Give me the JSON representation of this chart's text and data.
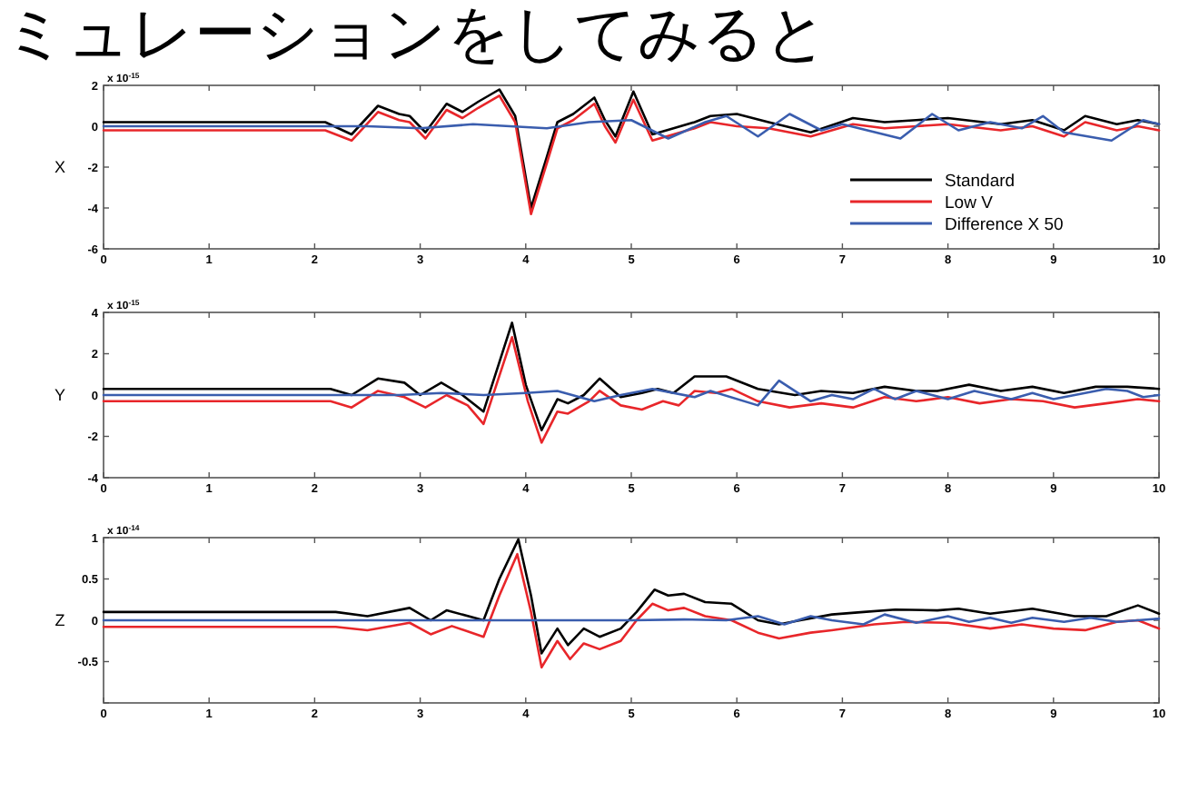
{
  "chart_data": [
    {
      "type": "line",
      "title": "ミュレーションをしてみると",
      "ylabel": "X",
      "annotations": [
        "x 10$^{-15}$"
      ],
      "xlim": [
        0,
        10
      ],
      "ylim": [
        -6,
        2
      ],
      "xticks": [
        0,
        1,
        2,
        3,
        4,
        5,
        6,
        7,
        8,
        9,
        10
      ],
      "yticks": [
        -6,
        -4,
        -2,
        0,
        2
      ],
      "legend": "bottom right",
      "line_style": "solid",
      "series": [
        {
          "name": "Standard",
          "color": "#000000",
          "x": [
            0,
            2.1,
            2.35,
            2.6,
            2.8,
            2.9,
            3.05,
            3.25,
            3.4,
            3.55,
            3.75,
            3.9,
            4.05,
            4.2,
            4.3,
            4.45,
            4.65,
            4.75,
            4.85,
            5.02,
            5.2,
            5.4,
            5.6,
            5.75,
            6.0,
            6.3,
            6.7,
            7.1,
            7.4,
            7.7,
            8.0,
            8.5,
            8.8,
            9.1,
            9.3,
            9.6,
            9.8,
            10
          ],
          "values": [
            0.2,
            0.2,
            -0.4,
            1.0,
            0.6,
            0.5,
            -0.3,
            1.1,
            0.7,
            1.2,
            1.8,
            0.5,
            -4.0,
            -1.5,
            0.2,
            0.6,
            1.4,
            0.3,
            -0.5,
            1.7,
            -0.4,
            -0.1,
            0.2,
            0.5,
            0.6,
            0.2,
            -0.3,
            0.4,
            0.2,
            0.3,
            0.4,
            0.1,
            0.3,
            -0.2,
            0.5,
            0.1,
            0.3,
            0.1
          ]
        },
        {
          "name": "Low V",
          "color": "#e8262a",
          "x": [
            0,
            2.1,
            2.35,
            2.6,
            2.8,
            2.9,
            3.05,
            3.25,
            3.4,
            3.55,
            3.75,
            3.9,
            4.05,
            4.2,
            4.3,
            4.45,
            4.65,
            4.75,
            4.85,
            5.02,
            5.2,
            5.4,
            5.6,
            5.75,
            6.0,
            6.3,
            6.7,
            7.1,
            7.4,
            7.7,
            8.0,
            8.5,
            8.8,
            9.1,
            9.3,
            9.6,
            9.8,
            10
          ],
          "values": [
            -0.2,
            -0.2,
            -0.7,
            0.7,
            0.3,
            0.2,
            -0.6,
            0.8,
            0.4,
            0.9,
            1.5,
            0.2,
            -4.3,
            -1.8,
            -0.1,
            0.3,
            1.1,
            0.0,
            -0.8,
            1.3,
            -0.7,
            -0.4,
            -0.1,
            0.2,
            0.0,
            -0.1,
            -0.5,
            0.1,
            -0.1,
            0.0,
            0.1,
            -0.2,
            0.0,
            -0.5,
            0.2,
            -0.2,
            0.0,
            -0.2
          ]
        },
        {
          "name": "Difference X 50",
          "color": "#3a5dae",
          "x": [
            0,
            2.5,
            3.0,
            3.5,
            4.2,
            4.6,
            5.0,
            5.35,
            5.7,
            5.9,
            6.2,
            6.5,
            6.8,
            7.0,
            7.55,
            7.85,
            8.1,
            8.4,
            8.7,
            8.9,
            9.1,
            9.55,
            9.85,
            10
          ],
          "values": [
            0,
            0,
            -0.1,
            0.1,
            -0.1,
            0.2,
            0.3,
            -0.6,
            0.2,
            0.5,
            -0.5,
            0.6,
            -0.2,
            0.1,
            -0.6,
            0.6,
            -0.2,
            0.2,
            -0.1,
            0.5,
            -0.3,
            -0.7,
            0.3,
            0.1
          ]
        }
      ]
    },
    {
      "type": "line",
      "ylabel": "Y",
      "annotations": [
        "x 10$^{-15}$"
      ],
      "xlim": [
        0,
        10
      ],
      "ylim": [
        -4,
        4
      ],
      "xticks": [
        0,
        1,
        2,
        3,
        4,
        5,
        6,
        7,
        8,
        9,
        10
      ],
      "yticks": [
        -4,
        -2,
        0,
        2,
        4
      ],
      "line_style": "solid",
      "series": [
        {
          "color": "#000000",
          "x": [
            0,
            2.15,
            2.35,
            2.6,
            2.85,
            3.0,
            3.2,
            3.4,
            3.6,
            3.87,
            4.0,
            4.15,
            4.3,
            4.4,
            4.55,
            4.7,
            4.9,
            5.1,
            5.25,
            5.4,
            5.6,
            5.9,
            6.2,
            6.55,
            6.8,
            7.1,
            7.4,
            7.7,
            7.9,
            8.2,
            8.5,
            8.8,
            9.1,
            9.4,
            9.7,
            10
          ],
          "values": [
            0.3,
            0.3,
            0.0,
            0.8,
            0.6,
            0.0,
            0.6,
            0.0,
            -0.8,
            3.5,
            0.5,
            -1.7,
            -0.2,
            -0.4,
            0.0,
            0.8,
            -0.1,
            0.1,
            0.3,
            0.1,
            0.9,
            0.9,
            0.3,
            0.0,
            0.2,
            0.1,
            0.4,
            0.2,
            0.2,
            0.5,
            0.2,
            0.4,
            0.1,
            0.4,
            0.4,
            0.3
          ]
        },
        {
          "color": "#e8262a",
          "x": [
            0,
            2.15,
            2.35,
            2.6,
            2.85,
            3.05,
            3.25,
            3.45,
            3.6,
            3.87,
            4.02,
            4.15,
            4.3,
            4.4,
            4.6,
            4.7,
            4.9,
            5.1,
            5.3,
            5.45,
            5.6,
            5.8,
            5.95,
            6.2,
            6.5,
            6.8,
            7.1,
            7.4,
            7.7,
            8.0,
            8.3,
            8.6,
            8.9,
            9.2,
            9.5,
            9.8,
            10
          ],
          "values": [
            -0.3,
            -0.3,
            -0.6,
            0.2,
            -0.1,
            -0.6,
            0.0,
            -0.5,
            -1.4,
            2.8,
            -0.3,
            -2.3,
            -0.8,
            -0.9,
            -0.3,
            0.2,
            -0.5,
            -0.7,
            -0.3,
            -0.5,
            0.2,
            0.1,
            0.3,
            -0.3,
            -0.6,
            -0.4,
            -0.6,
            -0.1,
            -0.3,
            -0.1,
            -0.4,
            -0.2,
            -0.3,
            -0.6,
            -0.4,
            -0.2,
            -0.3
          ]
        },
        {
          "color": "#3a5dae",
          "x": [
            0,
            2.8,
            3.2,
            3.6,
            4.0,
            4.3,
            4.65,
            4.9,
            5.2,
            5.6,
            5.75,
            6.2,
            6.4,
            6.7,
            6.9,
            7.1,
            7.3,
            7.5,
            7.7,
            8.0,
            8.25,
            8.6,
            8.8,
            9.0,
            9.2,
            9.5,
            9.7,
            9.85,
            10
          ],
          "values": [
            0,
            0,
            0.1,
            0.0,
            0.1,
            0.2,
            -0.3,
            0.0,
            0.3,
            -0.1,
            0.2,
            -0.5,
            0.7,
            -0.3,
            0.0,
            -0.2,
            0.3,
            -0.2,
            0.2,
            -0.2,
            0.2,
            -0.2,
            0.1,
            -0.2,
            0.0,
            0.3,
            0.2,
            -0.1,
            0.0
          ]
        }
      ]
    },
    {
      "type": "line",
      "ylabel": "Z",
      "annotations": [
        "x 10$^{-14}$"
      ],
      "xlim": [
        0,
        10
      ],
      "ylim": [
        -1,
        1
      ],
      "xticks": [
        0,
        1,
        2,
        3,
        4,
        5,
        6,
        7,
        8,
        9,
        10
      ],
      "yticks": [
        {
          "value": -1,
          "label": null
        },
        -0.5,
        0,
        0.5,
        1
      ],
      "line_style": "solid",
      "series": [
        {
          "color": "#000000",
          "x": [
            0,
            2.2,
            2.5,
            2.9,
            3.1,
            3.25,
            3.6,
            3.75,
            3.93,
            4.05,
            4.15,
            4.3,
            4.4,
            4.55,
            4.7,
            4.9,
            5.05,
            5.22,
            5.35,
            5.5,
            5.7,
            5.95,
            6.2,
            6.4,
            6.6,
            6.9,
            7.2,
            7.5,
            7.9,
            8.1,
            8.4,
            8.8,
            9.2,
            9.5,
            9.8,
            10
          ],
          "values": [
            0.1,
            0.1,
            0.05,
            0.15,
            0.0,
            0.12,
            0.0,
            0.5,
            0.98,
            0.3,
            -0.4,
            -0.1,
            -0.3,
            -0.1,
            -0.2,
            -0.1,
            0.1,
            0.37,
            0.3,
            0.32,
            0.22,
            0.2,
            0.0,
            -0.05,
            0.0,
            0.07,
            0.1,
            0.13,
            0.12,
            0.14,
            0.08,
            0.14,
            0.05,
            0.05,
            0.18,
            0.08
          ]
        },
        {
          "color": "#e8262a",
          "x": [
            0,
            2.2,
            2.5,
            2.9,
            3.1,
            3.3,
            3.6,
            3.75,
            3.92,
            4.05,
            4.15,
            4.3,
            4.42,
            4.55,
            4.7,
            4.9,
            5.05,
            5.2,
            5.35,
            5.5,
            5.7,
            5.95,
            6.2,
            6.4,
            6.7,
            6.9,
            7.3,
            7.6,
            8.0,
            8.4,
            8.7,
            9.0,
            9.3,
            9.6,
            9.8,
            10
          ],
          "values": [
            -0.08,
            -0.08,
            -0.12,
            -0.03,
            -0.17,
            -0.07,
            -0.2,
            0.3,
            0.8,
            0.1,
            -0.57,
            -0.25,
            -0.47,
            -0.28,
            -0.35,
            -0.25,
            0.0,
            0.2,
            0.12,
            0.15,
            0.05,
            0.0,
            -0.15,
            -0.22,
            -0.15,
            -0.12,
            -0.05,
            -0.02,
            -0.03,
            -0.1,
            -0.05,
            -0.1,
            -0.12,
            -0.02,
            0.0,
            -0.1
          ]
        },
        {
          "color": "#3a5dae",
          "x": [
            0,
            5.0,
            5.5,
            5.9,
            6.2,
            6.45,
            6.7,
            6.9,
            7.2,
            7.4,
            7.7,
            8.0,
            8.2,
            8.4,
            8.6,
            8.8,
            9.1,
            9.35,
            9.6,
            10
          ],
          "values": [
            0,
            0,
            0.01,
            0.0,
            0.05,
            -0.05,
            0.05,
            0.0,
            -0.05,
            0.07,
            -0.03,
            0.05,
            -0.02,
            0.03,
            -0.03,
            0.03,
            -0.02,
            0.03,
            -0.02,
            0.02
          ]
        }
      ]
    }
  ]
}
